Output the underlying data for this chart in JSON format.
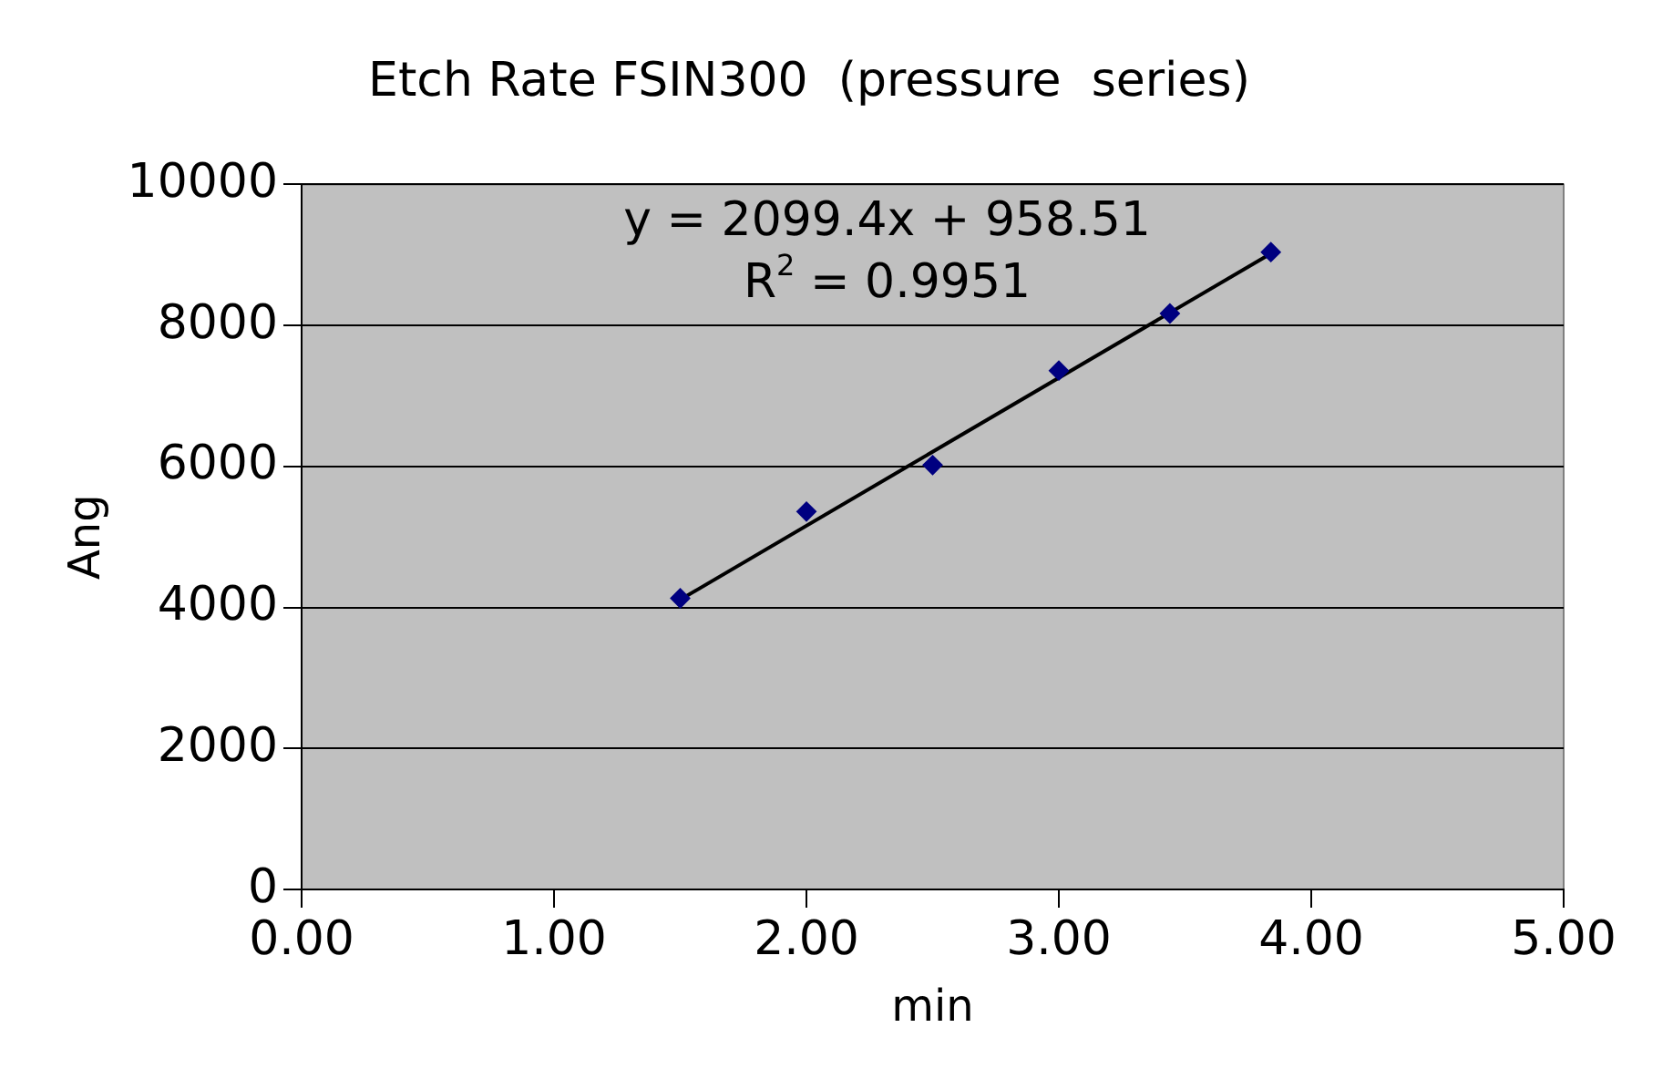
{
  "chart_data": {
    "type": "scatter",
    "title": "Etch Rate FSIN300  (pressure  series)",
    "xlabel": "min",
    "ylabel": "Ang",
    "xlim": [
      0,
      5
    ],
    "xticks": [
      {
        "value": 0,
        "label": "0.00"
      },
      {
        "value": 1,
        "label": "1.00"
      },
      {
        "value": 2,
        "label": "2.00"
      },
      {
        "value": 3,
        "label": "3.00"
      },
      {
        "value": 4,
        "label": "4.00"
      },
      {
        "value": 5,
        "label": "5.00"
      }
    ],
    "ylim": [
      0,
      10000
    ],
    "yticks": [
      0,
      2000,
      4000,
      6000,
      8000,
      10000
    ],
    "grid": "y",
    "legend": false,
    "marker": "diamond",
    "series": [
      {
        "color": "#000080",
        "x": [
          1.5,
          2.0,
          2.5,
          3.0,
          3.44,
          3.84
        ],
        "values": [
          4130,
          5360,
          6020,
          7360,
          8170,
          9040
        ]
      },
      {
        "type": "line",
        "color": "#000000",
        "marker": "none",
        "x": [
          1.5,
          3.84
        ],
        "values": [
          4110,
          9020
        ]
      }
    ],
    "annotations": [
      "y = 2099.4x + 958.51",
      "R$^{2}$ = 0.9951"
    ]
  }
}
